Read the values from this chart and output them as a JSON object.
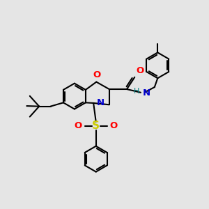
{
  "bg_color": "#e5e5e5",
  "bond_color": "#000000",
  "o_color": "#ff0000",
  "n_color": "#0000cd",
  "s_color": "#cccc00",
  "h_color": "#008080",
  "lw": 1.5,
  "ring_r": 0.55,
  "xlim": [
    0,
    10
  ],
  "ylim": [
    0,
    10
  ]
}
